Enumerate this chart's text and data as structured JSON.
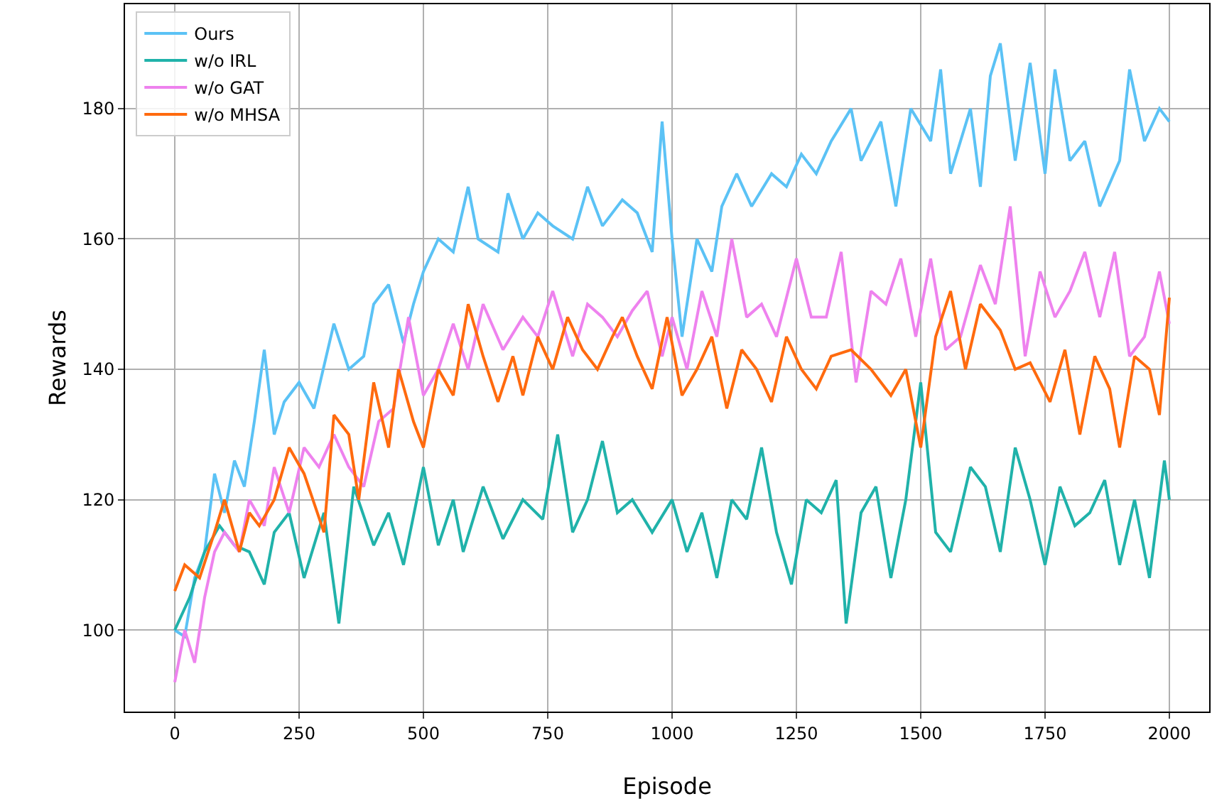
{
  "chart_data": {
    "type": "line",
    "xlabel": "Episode",
    "ylabel": "Rewards",
    "xlim": [
      -100,
      2080
    ],
    "ylim": [
      87.5,
      196
    ],
    "xticks": [
      0,
      250,
      500,
      750,
      1000,
      1250,
      1500,
      1750,
      2000
    ],
    "yticks": [
      100,
      120,
      140,
      160,
      180
    ],
    "grid": true,
    "legend": "top left",
    "line_style": "solid",
    "marker": "none",
    "series": [
      {
        "name": "Ours",
        "color": "#5bc2f5",
        "x": [
          0,
          20,
          40,
          60,
          80,
          100,
          120,
          140,
          160,
          180,
          200,
          220,
          250,
          280,
          320,
          350,
          380,
          400,
          430,
          460,
          480,
          500,
          530,
          560,
          590,
          610,
          650,
          670,
          700,
          730,
          760,
          800,
          830,
          860,
          900,
          930,
          960,
          980,
          1000,
          1020,
          1050,
          1080,
          1100,
          1130,
          1160,
          1200,
          1230,
          1260,
          1290,
          1320,
          1360,
          1380,
          1420,
          1450,
          1480,
          1520,
          1540,
          1560,
          1600,
          1620,
          1640,
          1660,
          1690,
          1720,
          1750,
          1770,
          1800,
          1830,
          1860,
          1900,
          1920,
          1950,
          1980,
          2000
        ],
        "values": [
          100,
          99,
          108,
          112,
          124,
          118,
          126,
          122,
          132,
          143,
          130,
          135,
          138,
          134,
          147,
          140,
          142,
          150,
          153,
          144,
          150,
          155,
          160,
          158,
          168,
          160,
          158,
          167,
          160,
          164,
          162,
          160,
          168,
          162,
          166,
          164,
          158,
          178,
          160,
          145,
          160,
          155,
          165,
          170,
          165,
          170,
          168,
          173,
          170,
          175,
          180,
          172,
          178,
          165,
          180,
          175,
          186,
          170,
          180,
          168,
          185,
          190,
          172,
          187,
          170,
          186,
          172,
          175,
          165,
          172,
          186,
          175,
          180,
          178
        ]
      },
      {
        "name": "w/o IRL",
        "color": "#20b2aa",
        "x": [
          0,
          30,
          60,
          90,
          120,
          150,
          180,
          200,
          230,
          260,
          300,
          330,
          360,
          400,
          430,
          460,
          500,
          530,
          560,
          580,
          620,
          660,
          700,
          740,
          770,
          800,
          830,
          860,
          890,
          920,
          960,
          1000,
          1030,
          1060,
          1090,
          1120,
          1150,
          1180,
          1210,
          1240,
          1270,
          1300,
          1330,
          1350,
          1380,
          1410,
          1440,
          1470,
          1500,
          1530,
          1560,
          1600,
          1630,
          1660,
          1690,
          1720,
          1750,
          1780,
          1810,
          1840,
          1870,
          1900,
          1930,
          1960,
          1990,
          2000
        ],
        "values": [
          100,
          105,
          112,
          116,
          113,
          112,
          107,
          115,
          118,
          108,
          118,
          101,
          122,
          113,
          118,
          110,
          125,
          113,
          120,
          112,
          122,
          114,
          120,
          117,
          130,
          115,
          120,
          129,
          118,
          120,
          115,
          120,
          112,
          118,
          108,
          120,
          117,
          128,
          115,
          107,
          120,
          118,
          123,
          101,
          118,
          122,
          108,
          120,
          138,
          115,
          112,
          125,
          122,
          112,
          128,
          120,
          110,
          122,
          116,
          118,
          123,
          110,
          120,
          108,
          126,
          120
        ]
      },
      {
        "name": "w/o GAT",
        "color": "#ee82ee",
        "x": [
          0,
          20,
          40,
          60,
          80,
          100,
          130,
          150,
          180,
          200,
          230,
          260,
          290,
          320,
          350,
          380,
          410,
          440,
          470,
          500,
          530,
          560,
          590,
          620,
          660,
          700,
          730,
          760,
          800,
          830,
          860,
          890,
          920,
          950,
          980,
          1000,
          1030,
          1060,
          1090,
          1120,
          1150,
          1180,
          1210,
          1250,
          1280,
          1310,
          1340,
          1370,
          1400,
          1430,
          1460,
          1490,
          1520,
          1550,
          1580,
          1620,
          1650,
          1680,
          1710,
          1740,
          1770,
          1800,
          1830,
          1860,
          1890,
          1920,
          1950,
          1980,
          2000
        ],
        "values": [
          92,
          100,
          95,
          105,
          112,
          115,
          112,
          120,
          116,
          125,
          118,
          128,
          125,
          130,
          125,
          122,
          132,
          134,
          148,
          136,
          140,
          147,
          140,
          150,
          143,
          148,
          145,
          152,
          142,
          150,
          148,
          145,
          149,
          152,
          142,
          148,
          140,
          152,
          145,
          160,
          148,
          150,
          145,
          157,
          148,
          148,
          158,
          138,
          152,
          150,
          157,
          145,
          157,
          143,
          145,
          156,
          150,
          165,
          142,
          155,
          148,
          152,
          158,
          148,
          158,
          142,
          145,
          155,
          147
        ]
      },
      {
        "name": "w/o MHSA",
        "color": "#ff6a0e",
        "x": [
          0,
          20,
          50,
          80,
          100,
          130,
          150,
          170,
          200,
          230,
          260,
          300,
          320,
          350,
          370,
          400,
          430,
          450,
          480,
          500,
          530,
          560,
          590,
          620,
          650,
          680,
          700,
          730,
          760,
          790,
          820,
          850,
          880,
          900,
          930,
          960,
          990,
          1020,
          1050,
          1080,
          1110,
          1140,
          1170,
          1200,
          1230,
          1260,
          1290,
          1320,
          1360,
          1400,
          1440,
          1470,
          1500,
          1530,
          1560,
          1590,
          1620,
          1660,
          1690,
          1720,
          1760,
          1790,
          1820,
          1850,
          1880,
          1900,
          1930,
          1960,
          1980,
          2000
        ],
        "values": [
          106,
          110,
          108,
          115,
          120,
          112,
          118,
          116,
          120,
          128,
          124,
          115,
          133,
          130,
          120,
          138,
          128,
          140,
          132,
          128,
          140,
          136,
          150,
          142,
          135,
          142,
          136,
          145,
          140,
          148,
          143,
          140,
          145,
          148,
          142,
          137,
          148,
          136,
          140,
          145,
          134,
          143,
          140,
          135,
          145,
          140,
          137,
          142,
          143,
          140,
          136,
          140,
          128,
          145,
          152,
          140,
          150,
          146,
          140,
          141,
          135,
          143,
          130,
          142,
          137,
          128,
          142,
          140,
          133,
          151
        ]
      }
    ]
  }
}
